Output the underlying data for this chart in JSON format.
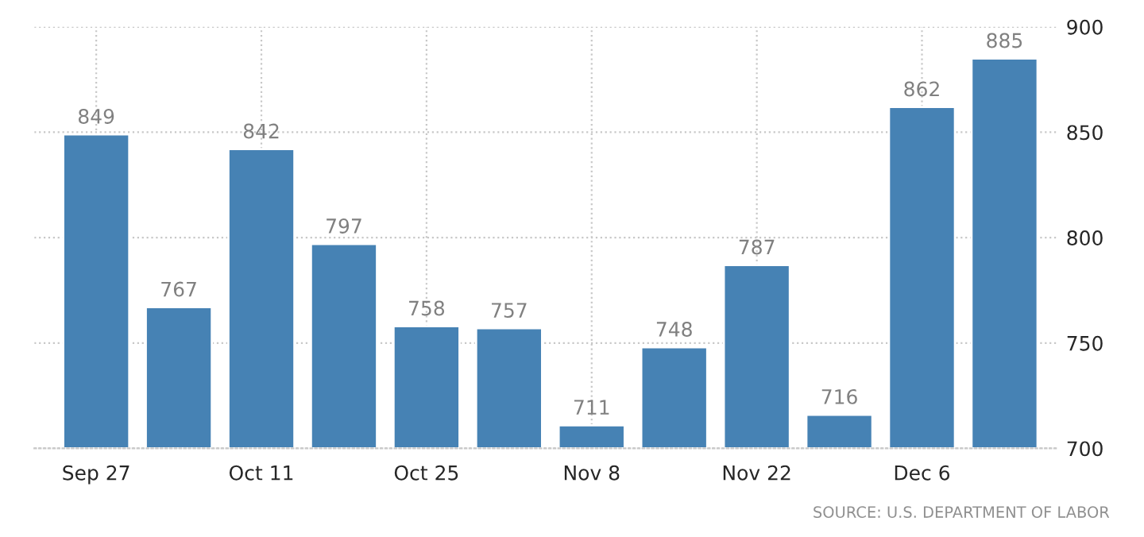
{
  "chart_data": {
    "type": "bar",
    "categories": [
      "Sep 27",
      null,
      "Oct 11",
      null,
      "Oct 25",
      null,
      "Nov 8",
      null,
      "Nov 22",
      null,
      "Dec 6",
      null
    ],
    "values": [
      849,
      767,
      842,
      797,
      758,
      757,
      711,
      748,
      787,
      716,
      862,
      885
    ],
    "color": "#4682b4",
    "ylim": [
      700,
      900
    ],
    "yticks": [
      700,
      750,
      800,
      850,
      900
    ],
    "grid": true,
    "data_labels": true,
    "annotations": [
      "SOURCE: U.S. DEPARTMENT OF LABOR"
    ]
  }
}
